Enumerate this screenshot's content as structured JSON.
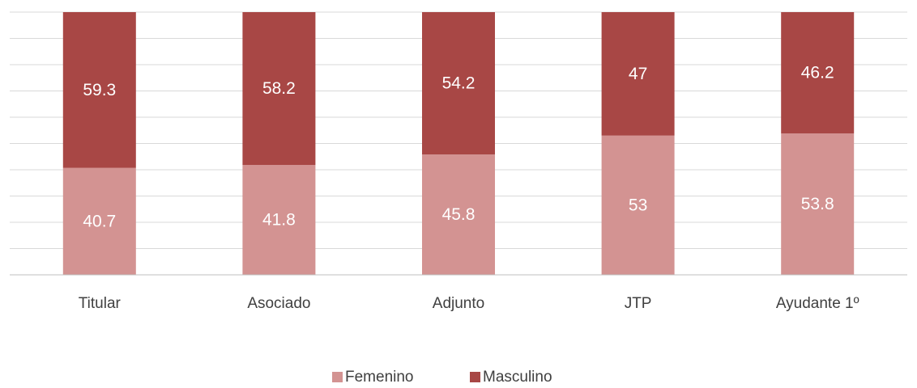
{
  "chart_data": {
    "type": "stacked_bar",
    "categories": [
      "Titular",
      "Asociado",
      "Adjunto",
      "JTP",
      "Ayudante 1º"
    ],
    "series": [
      {
        "name": "Femenino",
        "color": "#d39392",
        "values": [
          40.7,
          41.8,
          45.8,
          53,
          53.8
        ]
      },
      {
        "name": "Masculino",
        "color": "#a84745",
        "values": [
          59.3,
          58.2,
          54.2,
          47,
          46.2
        ]
      }
    ],
    "ylim": [
      0,
      100
    ],
    "yticks": [
      0,
      10,
      20,
      30,
      40,
      50,
      60,
      70,
      80,
      90,
      100
    ],
    "grid": true,
    "legend": "bottom"
  }
}
